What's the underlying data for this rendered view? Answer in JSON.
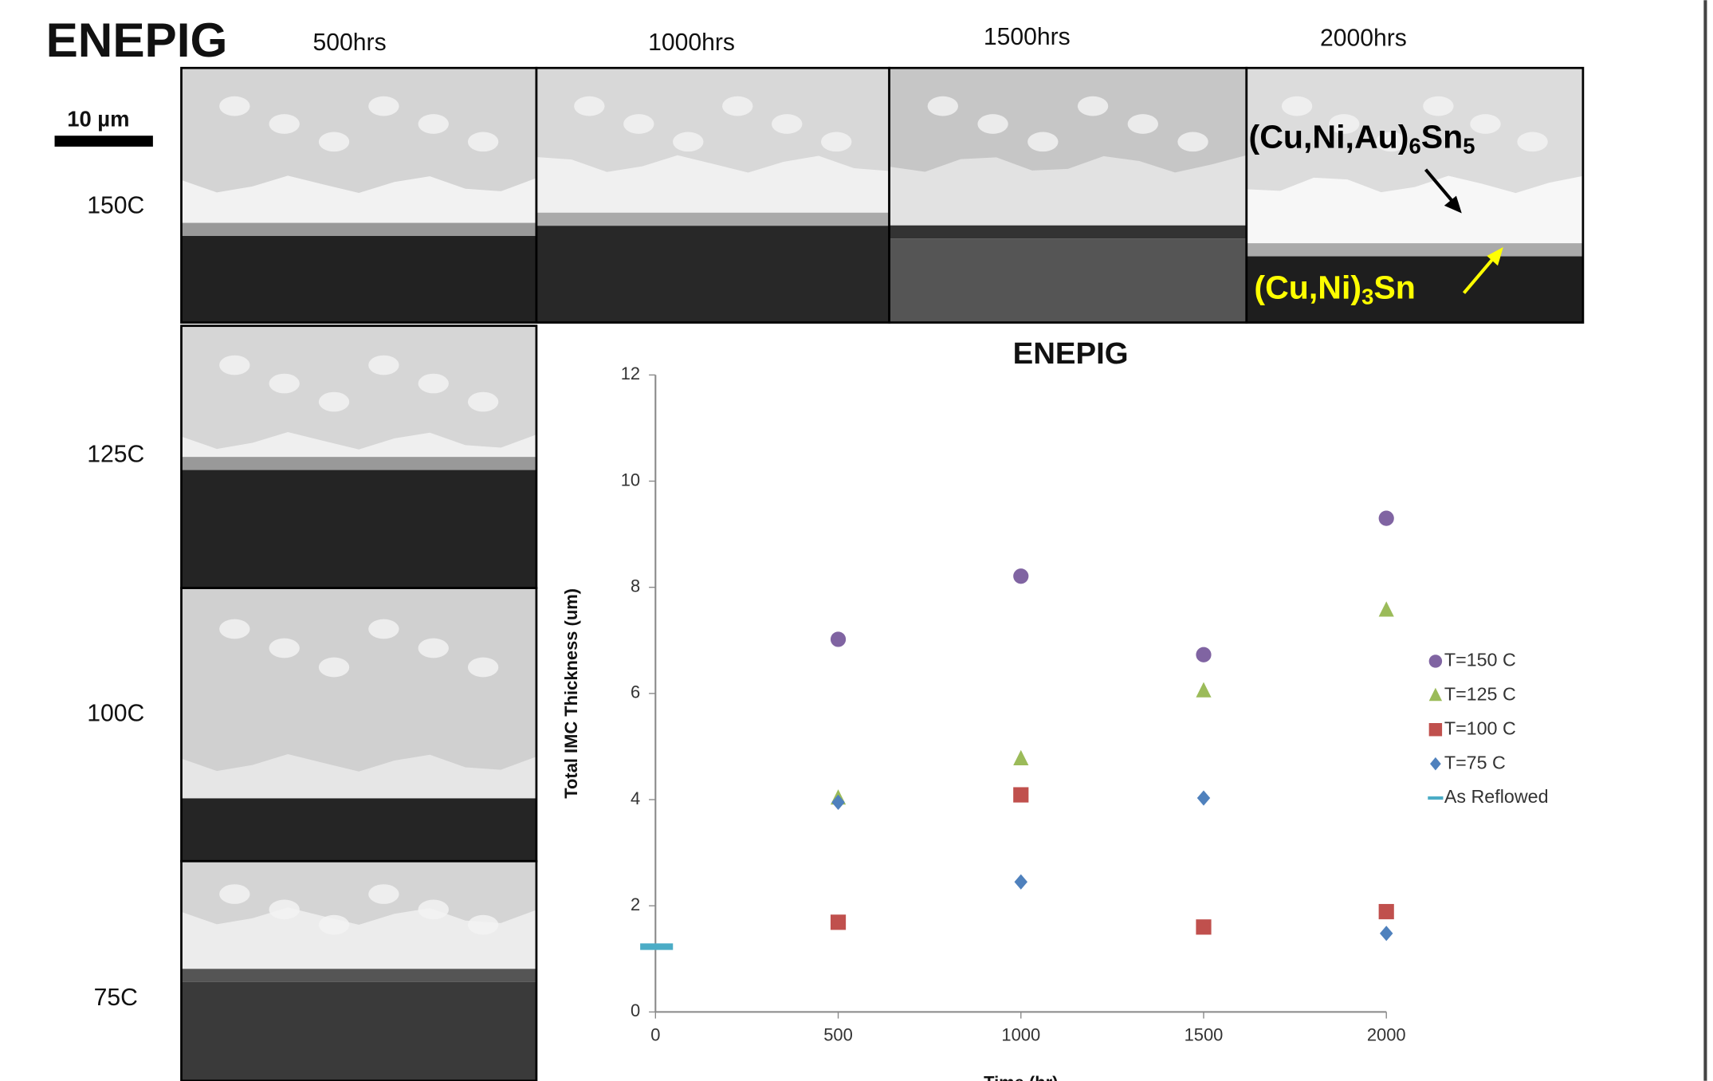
{
  "title": "ENEPIG",
  "column_labels": [
    "500hrs",
    "1000hrs",
    "1500hrs",
    "2000hrs"
  ],
  "row_labels": [
    "150C",
    "125C",
    "100C",
    "75C"
  ],
  "scale_bar": "10 µm",
  "annotations": [
    {
      "parts": [
        "(Cu,Ni,Au)",
        "6",
        "Sn",
        "5"
      ],
      "color": "#000000"
    },
    {
      "parts": [
        "(Cu,Ni)",
        "3",
        "Sn"
      ],
      "color": "#ffff00"
    }
  ],
  "chart_data": {
    "type": "scatter",
    "title": "ENEPIG",
    "x_label": "Time (hr)",
    "y_label": "Total IMC Thickness (um)",
    "xlim": [
      0,
      2000
    ],
    "xticks": [
      0,
      500,
      1000,
      1500,
      2000
    ],
    "ylim": [
      0,
      12
    ],
    "yticks": [
      0,
      2,
      4,
      6,
      8,
      10,
      12
    ],
    "legend": "right",
    "series": [
      {
        "name": "T=150 C",
        "color": "#8064a2",
        "marker": "circle",
        "x": [
          500,
          1000,
          1500,
          2000
        ],
        "values": [
          7.02,
          8.21,
          6.73,
          9.3
        ]
      },
      {
        "name": "T=125 C",
        "color": "#9bbb59",
        "marker": "triangle",
        "x": [
          500,
          1000,
          1500,
          2000
        ],
        "values": [
          4.03,
          4.77,
          6.05,
          7.57
        ]
      },
      {
        "name": "T=100 C",
        "color": "#c0504d",
        "marker": "square",
        "x": [
          500,
          1000,
          1500,
          2000
        ],
        "values": [
          1.69,
          4.09,
          1.6,
          1.89
        ]
      },
      {
        "name": "T=75 C",
        "color": "#4f81bd",
        "marker": "diamond",
        "x": [
          500,
          1000,
          1500,
          2000
        ],
        "values": [
          3.95,
          2.45,
          4.03,
          1.48
        ]
      },
      {
        "name": "As Reflowed",
        "color": "#4bacc6",
        "marker": "dash",
        "x": [
          0
        ],
        "values": [
          1.23
        ]
      }
    ]
  }
}
